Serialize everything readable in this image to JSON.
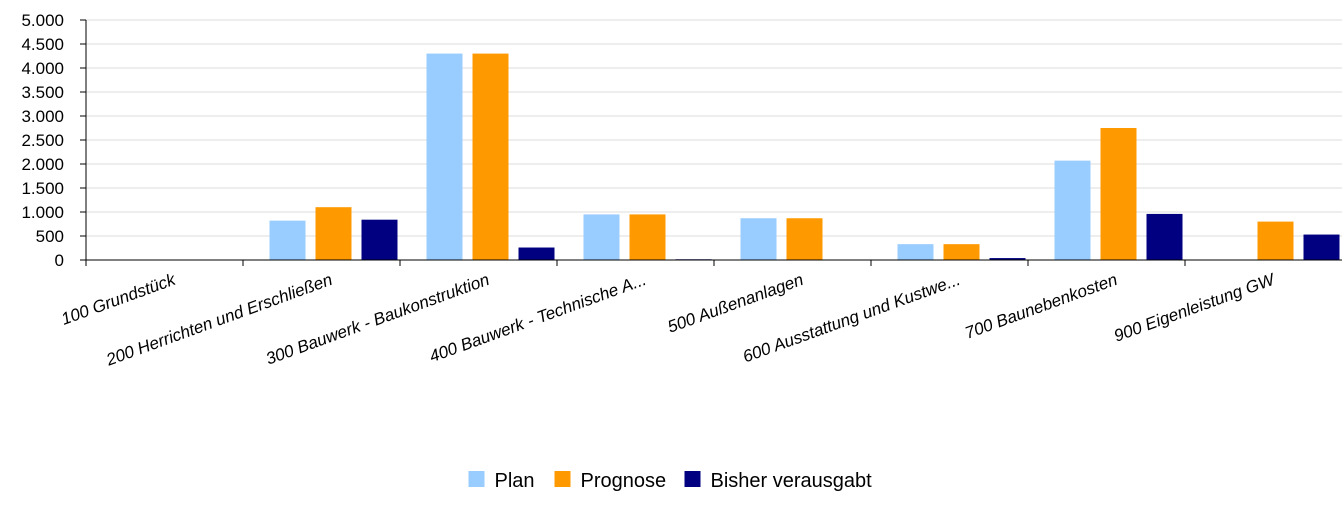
{
  "chart_data": {
    "type": "bar",
    "title": "",
    "xlabel": "",
    "ylabel": "",
    "ylim": [
      0,
      5000
    ],
    "y_ticks": [
      0,
      500,
      1000,
      1500,
      2000,
      2500,
      3000,
      3500,
      4000,
      4500,
      5000
    ],
    "y_tick_labels": [
      "0",
      "500",
      "1.000",
      "1.500",
      "2.000",
      "2.500",
      "3.000",
      "3.500",
      "4.000",
      "4.500",
      "5.000"
    ],
    "grid": true,
    "legend_position": "bottom",
    "categories": [
      "100 Grundstück",
      "200 Herrichten und Erschließen",
      "300 Bauwerk - Baukonstruktion",
      "400 Bauwerk - Technische A...",
      "500 Außenanlagen",
      "600 Ausstattung und Kustwe...",
      "700 Baunebenkosten",
      "900 Eigenleistung GW"
    ],
    "series": [
      {
        "name": "Plan",
        "color": "#99ccff",
        "values": [
          0,
          820,
          4300,
          950,
          870,
          330,
          2070,
          0
        ]
      },
      {
        "name": "Prognose",
        "color": "#ff9900",
        "values": [
          0,
          1100,
          4300,
          950,
          870,
          330,
          2750,
          800
        ]
      },
      {
        "name": "Bisher verausgabt",
        "color": "#000080",
        "values": [
          0,
          840,
          260,
          15,
          10,
          40,
          960,
          530
        ]
      }
    ]
  }
}
